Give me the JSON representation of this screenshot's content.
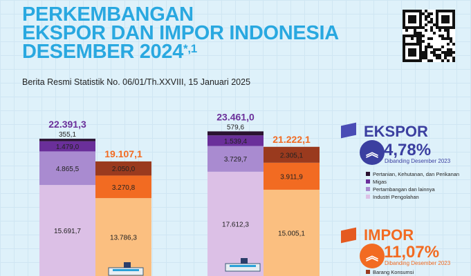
{
  "header": {
    "title_lines": [
      "PERKEMBANGAN",
      "EKSPOR DAN IMPOR INDONESIA",
      "DESEMBER 2024"
    ],
    "title_suffix": "*,1",
    "subtitle": "Berita Resmi Statistik No. 06/01/Th.XXVIII, 15 Januari 2025"
  },
  "ekspor": {
    "label": "EKSPOR",
    "change": "4,78%",
    "compare": "Dibanding Desember 2023",
    "color": "#3b3fa0",
    "icon": "double-chevron-up-icon",
    "legend": [
      {
        "label": "Pertanian, Kehutanan, dan Perikanan",
        "color": "#2a1230"
      },
      {
        "label": "Migas",
        "color": "#6a2f9a"
      },
      {
        "label": "Pertambangan dan lainnya",
        "color": "#a98bd0"
      },
      {
        "label": "Industri Pengolahan",
        "color": "#dcc0e6"
      }
    ]
  },
  "impor": {
    "label": "IMPOR",
    "change": "11,07%",
    "compare": "Dibanding Desember 2023",
    "color": "#f26b22",
    "icon": "double-chevron-up-icon",
    "legend": [
      {
        "label": "Barang Konsumsi",
        "color": "#9a3a1e"
      }
    ]
  },
  "chart_data": {
    "type": "stacked-bar",
    "bars": [
      {
        "group": "ekspor",
        "total": "22.391,3",
        "total_value": 22391.3,
        "segments": [
          {
            "value": 15691.7,
            "label": "15.691,7",
            "color": "#dcc0e6"
          },
          {
            "value": 4865.5,
            "label": "4.865,5",
            "color": "#a98bd0"
          },
          {
            "value": 1479.0,
            "label": "1.479,0",
            "color": "#6a2f9a"
          },
          {
            "value": 355.1,
            "label": "355,1",
            "color": "#2a1230"
          }
        ]
      },
      {
        "group": "impor",
        "total": "19.107,1",
        "total_value": 19107.1,
        "segments": [
          {
            "value": 13786.3,
            "label": "13.786,3",
            "color": "#fbbf80"
          },
          {
            "value": 3270.8,
            "label": "3.270,8",
            "color": "#f26b22"
          },
          {
            "value": 2050.0,
            "label": "2.050,0",
            "color": "#9a3a1e"
          }
        ]
      },
      {
        "group": "ekspor",
        "total": "23.461,0",
        "total_value": 23461.0,
        "segments": [
          {
            "value": 17612.3,
            "label": "17.612,3",
            "color": "#dcc0e6"
          },
          {
            "value": 3729.7,
            "label": "3.729,7",
            "color": "#a98bd0"
          },
          {
            "value": 1539.4,
            "label": "1.539,4",
            "color": "#6a2f9a"
          },
          {
            "value": 579.6,
            "label": "579,6",
            "color": "#2a1230"
          }
        ]
      },
      {
        "group": "impor",
        "total": "21.222,1",
        "total_value": 21222.1,
        "segments": [
          {
            "value": 15005.1,
            "label": "15.005,1",
            "color": "#fbbf80"
          },
          {
            "value": 3911.9,
            "label": "3.911,9",
            "color": "#f26b22"
          },
          {
            "value": 2305.1,
            "label": "2.305,1",
            "color": "#9a3a1e"
          }
        ]
      }
    ],
    "total_colors": {
      "ekspor": "#6a2f9a",
      "impor": "#f26b22"
    }
  }
}
